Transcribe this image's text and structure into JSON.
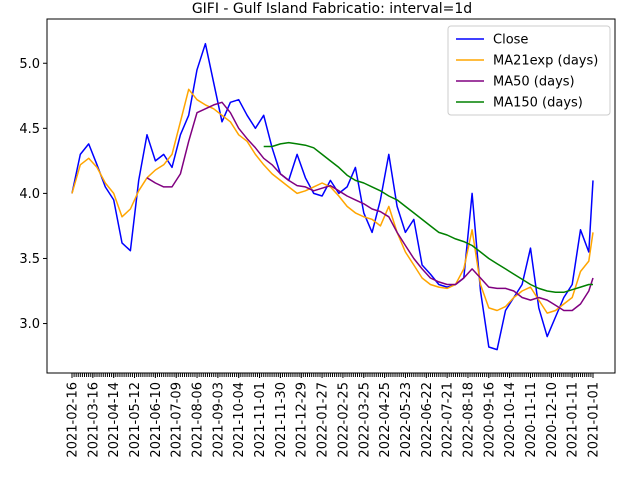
{
  "chart_data": {
    "type": "line",
    "title": "GIFI - Gulf Island Fabricatio: interval=1d",
    "xlabel": "",
    "ylabel": "",
    "ylim": [
      2.62,
      5.34
    ],
    "yticks": [
      3.0,
      3.5,
      4.0,
      4.5,
      5.0
    ],
    "ytick_labels": [
      "3.0",
      "3.5",
      "4.0",
      "4.5",
      "5.0"
    ],
    "xtick_labels": [
      "2021-02-16",
      "2021-03-16",
      "2021-04-14",
      "2021-05-12",
      "2021-06-10",
      "2021-07-09",
      "2021-08-06",
      "2021-09-03",
      "2021-10-04",
      "2021-11-01",
      "2021-11-30",
      "2021-12-29",
      "2022-01-27",
      "2022-02-25",
      "2022-03-25",
      "2022-04-25",
      "2022-05-23",
      "2022-06-22",
      "2022-07-21",
      "2022-08-18",
      "2020-09-16",
      "2020-10-14",
      "2020-11-11",
      "2020-12-10",
      "2021-01-11",
      "2021-01-01"
    ],
    "x": [
      0,
      0.4,
      0.8,
      1.2,
      1.6,
      2.0,
      2.4,
      2.8,
      3.2,
      3.6,
      4.0,
      4.4,
      4.8,
      5.2,
      5.6,
      6.0,
      6.4,
      6.8,
      7.2,
      7.6,
      8.0,
      8.4,
      8.8,
      9.2,
      9.6,
      10.0,
      10.4,
      10.8,
      11.2,
      11.6,
      12.0,
      12.4,
      12.8,
      13.2,
      13.6,
      14.0,
      14.4,
      14.8,
      15.2,
      15.6,
      16.0,
      16.4,
      16.8,
      17.2,
      17.6,
      18.0,
      18.4,
      18.8,
      19.2,
      19.6,
      20.0,
      20.4,
      20.8,
      21.2,
      21.6,
      22.0,
      22.4,
      22.8,
      23.2,
      23.6,
      24.0,
      24.4,
      24.8,
      25.0
    ],
    "series": [
      {
        "name": "Close",
        "color": "#0000ff",
        "values": [
          4.0,
          4.3,
          4.38,
          4.22,
          4.05,
          3.95,
          3.62,
          3.56,
          4.1,
          4.45,
          4.25,
          4.3,
          4.2,
          4.45,
          4.6,
          4.95,
          5.15,
          4.85,
          4.55,
          4.7,
          4.72,
          4.6,
          4.5,
          4.6,
          4.35,
          4.15,
          4.1,
          4.3,
          4.12,
          4.0,
          3.98,
          4.1,
          4.0,
          4.05,
          4.2,
          3.85,
          3.7,
          3.95,
          4.3,
          3.9,
          3.7,
          3.8,
          3.45,
          3.38,
          3.3,
          3.28,
          3.3,
          3.35,
          4.0,
          3.25,
          2.82,
          2.8,
          3.1,
          3.2,
          3.3,
          3.58,
          3.12,
          2.9,
          3.05,
          3.2,
          3.3,
          3.72,
          3.55,
          4.1
        ],
        "markers": false
      },
      {
        "name": "MA21exp (days)",
        "color": "#ffa500",
        "values": [
          4.0,
          4.22,
          4.27,
          4.2,
          4.08,
          4.0,
          3.82,
          3.88,
          4.02,
          4.12,
          4.18,
          4.22,
          4.3,
          4.55,
          4.8,
          4.72,
          4.68,
          4.65,
          4.6,
          4.55,
          4.45,
          4.4,
          4.3,
          4.22,
          4.15,
          4.1,
          4.05,
          4.0,
          4.02,
          4.05,
          4.08,
          4.05,
          3.98,
          3.9,
          3.85,
          3.82,
          3.8,
          3.75,
          3.9,
          3.7,
          3.55,
          3.45,
          3.35,
          3.3,
          3.28,
          3.27,
          3.3,
          3.42,
          3.72,
          3.3,
          3.12,
          3.1,
          3.13,
          3.2,
          3.25,
          3.28,
          3.18,
          3.08,
          3.1,
          3.15,
          3.2,
          3.4,
          3.48,
          3.7
        ],
        "markers": false
      },
      {
        "name": "MA50 (days)",
        "color": "#800080",
        "values": [
          null,
          null,
          null,
          null,
          null,
          null,
          null,
          null,
          null,
          4.12,
          4.08,
          4.05,
          4.05,
          4.15,
          4.4,
          4.62,
          4.65,
          4.68,
          4.7,
          4.62,
          4.5,
          4.42,
          4.35,
          4.27,
          4.22,
          4.15,
          4.1,
          4.06,
          4.05,
          4.02,
          4.04,
          4.06,
          4.02,
          3.98,
          3.95,
          3.92,
          3.88,
          3.86,
          3.82,
          3.7,
          3.6,
          3.5,
          3.42,
          3.35,
          3.32,
          3.3,
          3.3,
          3.35,
          3.42,
          3.35,
          3.28,
          3.27,
          3.27,
          3.25,
          3.2,
          3.18,
          3.2,
          3.18,
          3.14,
          3.1,
          3.1,
          3.15,
          3.25,
          3.35
        ],
        "markers": false
      },
      {
        "name": "MA150 (days)",
        "color": "#008000",
        "values": [
          null,
          null,
          null,
          null,
          null,
          null,
          null,
          null,
          null,
          null,
          null,
          null,
          null,
          null,
          null,
          null,
          null,
          null,
          null,
          null,
          null,
          null,
          null,
          4.36,
          4.36,
          4.38,
          4.39,
          4.38,
          4.37,
          4.35,
          4.3,
          4.25,
          4.2,
          4.14,
          4.1,
          4.08,
          4.05,
          4.02,
          3.98,
          3.95,
          3.9,
          3.85,
          3.8,
          3.75,
          3.7,
          3.68,
          3.65,
          3.63,
          3.6,
          3.55,
          3.5,
          3.46,
          3.42,
          3.38,
          3.34,
          3.3,
          3.27,
          3.25,
          3.24,
          3.24,
          3.26,
          3.28,
          3.3,
          3.3
        ],
        "markers": false
      }
    ],
    "legend_position": "top-right",
    "grid": false
  }
}
